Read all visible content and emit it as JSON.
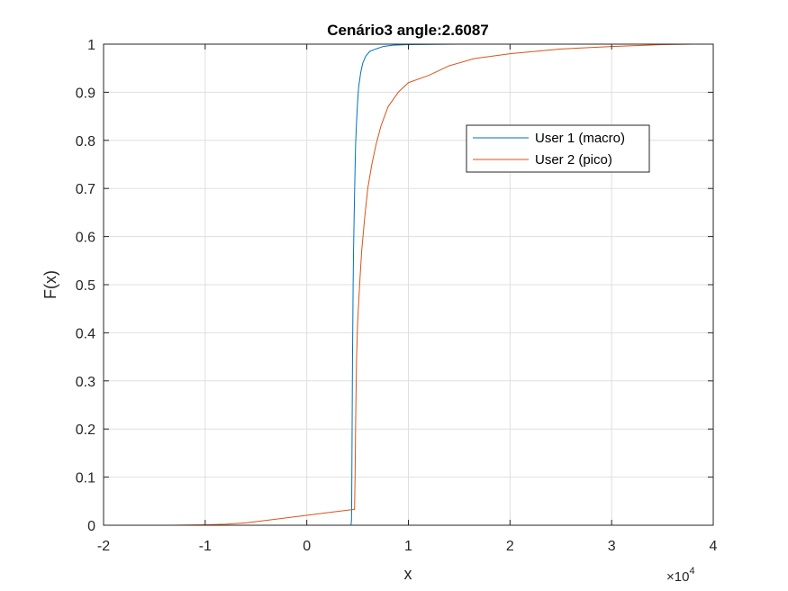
{
  "chart_data": {
    "type": "line",
    "title": "Cenário3 angle:2.6087",
    "xlabel": "x",
    "ylabel": "F(x)",
    "x_exponent_label": "×10",
    "x_exponent_power": "4",
    "xlim": [
      -2,
      4
    ],
    "ylim": [
      0,
      1
    ],
    "xticks": [
      -2,
      -1,
      0,
      1,
      2,
      3,
      4
    ],
    "xtick_labels": [
      "-2",
      "-1",
      "0",
      "1",
      "2",
      "3",
      "4"
    ],
    "yticks": [
      0,
      0.1,
      0.2,
      0.3,
      0.4,
      0.5,
      0.6,
      0.7,
      0.8,
      0.9,
      1
    ],
    "ytick_labels": [
      "0",
      "0.1",
      "0.2",
      "0.3",
      "0.4",
      "0.5",
      "0.6",
      "0.7",
      "0.8",
      "0.9",
      "1"
    ],
    "grid": true,
    "legend_position": "upper-right-inner",
    "series": [
      {
        "name": "User 1 (macro)",
        "color": "#0072BD",
        "points": [
          [
            0.43,
            0
          ],
          [
            0.435,
            0
          ],
          [
            0.44,
            0.01
          ],
          [
            0.442,
            0.05
          ],
          [
            0.444,
            0.12
          ],
          [
            0.446,
            0.2
          ],
          [
            0.448,
            0.28
          ],
          [
            0.45,
            0.35
          ],
          [
            0.453,
            0.42
          ],
          [
            0.456,
            0.5
          ],
          [
            0.46,
            0.57
          ],
          [
            0.465,
            0.63
          ],
          [
            0.47,
            0.69
          ],
          [
            0.475,
            0.74
          ],
          [
            0.48,
            0.79
          ],
          [
            0.49,
            0.84
          ],
          [
            0.5,
            0.88
          ],
          [
            0.51,
            0.91
          ],
          [
            0.53,
            0.94
          ],
          [
            0.55,
            0.96
          ],
          [
            0.58,
            0.975
          ],
          [
            0.62,
            0.985
          ],
          [
            0.68,
            0.99
          ],
          [
            0.75,
            0.995
          ],
          [
            0.85,
            0.998
          ],
          [
            1.0,
            0.999
          ],
          [
            1.5,
            1.0
          ]
        ]
      },
      {
        "name": "User 2 (pico)",
        "color": "#D95319",
        "points": [
          [
            -1.32,
            0
          ],
          [
            -1.0,
            0.001
          ],
          [
            -0.8,
            0.002
          ],
          [
            -0.6,
            0.005
          ],
          [
            -0.4,
            0.01
          ],
          [
            -0.25,
            0.014
          ],
          [
            -0.1,
            0.018
          ],
          [
            0.05,
            0.022
          ],
          [
            0.2,
            0.026
          ],
          [
            0.35,
            0.03
          ],
          [
            0.47,
            0.033
          ],
          [
            0.475,
            0.1
          ],
          [
            0.48,
            0.2
          ],
          [
            0.485,
            0.28
          ],
          [
            0.49,
            0.35
          ],
          [
            0.5,
            0.42
          ],
          [
            0.52,
            0.5
          ],
          [
            0.54,
            0.57
          ],
          [
            0.57,
            0.64
          ],
          [
            0.6,
            0.7
          ],
          [
            0.64,
            0.75
          ],
          [
            0.68,
            0.79
          ],
          [
            0.73,
            0.83
          ],
          [
            0.8,
            0.87
          ],
          [
            0.9,
            0.9
          ],
          [
            1.0,
            0.92
          ],
          [
            1.2,
            0.935
          ],
          [
            1.4,
            0.955
          ],
          [
            1.65,
            0.97
          ],
          [
            2.0,
            0.98
          ],
          [
            2.5,
            0.99
          ],
          [
            3.0,
            0.995
          ],
          [
            3.5,
            0.999
          ],
          [
            3.8,
            1.0
          ]
        ]
      }
    ]
  }
}
